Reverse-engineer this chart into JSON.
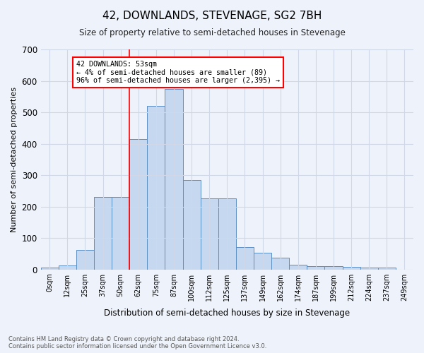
{
  "title": "42, DOWNLANDS, STEVENAGE, SG2 7BH",
  "subtitle": "Size of property relative to semi-detached houses in Stevenage",
  "xlabel": "Distribution of semi-detached houses by size in Stevenage",
  "ylabel": "Number of semi-detached properties",
  "footer_line1": "Contains HM Land Registry data © Crown copyright and database right 2024.",
  "footer_line2": "Contains public sector information licensed under the Open Government Licence v3.0.",
  "bar_labels": [
    "0sqm",
    "12sqm",
    "25sqm",
    "37sqm",
    "50sqm",
    "62sqm",
    "75sqm",
    "87sqm",
    "100sqm",
    "112sqm",
    "125sqm",
    "137sqm",
    "149sqm",
    "162sqm",
    "174sqm",
    "187sqm",
    "199sqm",
    "212sqm",
    "224sqm",
    "237sqm",
    "249sqm"
  ],
  "bar_values": [
    5,
    12,
    62,
    230,
    230,
    415,
    520,
    575,
    285,
    225,
    225,
    70,
    53,
    37,
    14,
    10,
    10,
    8,
    5,
    5,
    0
  ],
  "bar_color": "#c5d8f0",
  "bar_edge_color": "#5b8ec4",
  "annotation_text": "42 DOWNLANDS: 53sqm\n← 4% of semi-detached houses are smaller (89)\n96% of semi-detached houses are larger (2,395) →",
  "vline_x": 4.5,
  "vline_color": "red",
  "ylim": [
    0,
    700
  ],
  "yticks": [
    0,
    100,
    200,
    300,
    400,
    500,
    600,
    700
  ],
  "bg_color": "#eef2fa",
  "annotation_box_color": "white",
  "annotation_box_edge": "red",
  "grid_color": "#d0d8e8"
}
